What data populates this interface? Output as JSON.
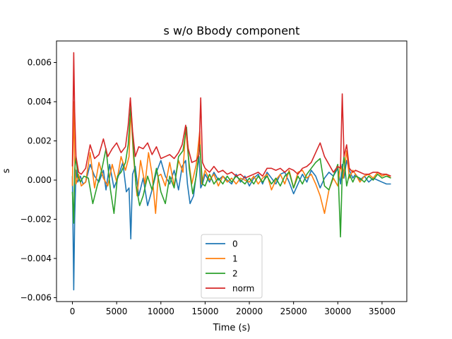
{
  "chart_data": {
    "type": "line",
    "title": "s w/o Bbody component",
    "xlabel": "Time (s)",
    "ylabel": "s",
    "xlim": [
      -1800,
      37800
    ],
    "ylim": [
      -0.0062,
      0.0071
    ],
    "xticks": [
      0,
      5000,
      10000,
      15000,
      20000,
      25000,
      30000,
      35000
    ],
    "xtick_labels": [
      "0",
      "5000",
      "10000",
      "15000",
      "20000",
      "25000",
      "30000",
      "35000"
    ],
    "yticks": [
      -0.006,
      -0.004,
      -0.002,
      0.0,
      0.002,
      0.004,
      0.006
    ],
    "ytick_labels": [
      "−0.006",
      "−0.004",
      "−0.002",
      "0.000",
      "0.002",
      "0.004",
      "0.006"
    ],
    "grid": false,
    "legend_position": "lower-center",
    "series": [
      {
        "name": "0",
        "color": "#1f77b4",
        "x": [
          0,
          150,
          250,
          400,
          600,
          900,
          1200,
          1500,
          2000,
          2500,
          3000,
          3500,
          3800,
          4200,
          4700,
          5200,
          5700,
          6100,
          6400,
          6600,
          6800,
          7100,
          7500,
          8000,
          8500,
          9000,
          9500,
          10000,
          10500,
          11000,
          11500,
          12000,
          12400,
          12800,
          13000,
          13300,
          13700,
          14000,
          14300,
          14500,
          14700,
          15000,
          15500,
          16000,
          16500,
          17000,
          17500,
          18000,
          18500,
          19000,
          19500,
          20000,
          20500,
          21000,
          21500,
          22000,
          22500,
          23000,
          23500,
          24000,
          24500,
          25000,
          25500,
          26000,
          26500,
          27000,
          27500,
          28000,
          28500,
          29000,
          29500,
          30000,
          30300,
          30500,
          30700,
          31000,
          31300,
          31700,
          32000,
          32500,
          33000,
          33500,
          34000,
          34500,
          35000,
          35500,
          36000
        ],
        "y": [
          0.0002,
          -0.0056,
          -0.002,
          0.0005,
          -0.0001,
          0.0002,
          -0.0002,
          -0.0001,
          0.0008,
          0.0002,
          -0.0001,
          0.0005,
          -0.0005,
          0.0008,
          -0.0004,
          0.0002,
          0.0009,
          -0.0006,
          -0.0004,
          -0.003,
          0.0003,
          0.0007,
          -0.0008,
          0.0001,
          -0.0013,
          -0.0005,
          0.0004,
          0.001,
          0.0002,
          -0.0002,
          0.0005,
          -0.0005,
          0.0007,
          0.001,
          -0.0002,
          -0.0012,
          -0.0008,
          0.0003,
          0.0012,
          -0.0004,
          -0.0002,
          0.0003,
          -0.0001,
          0.0004,
          0.0,
          0.0002,
          0.0,
          -0.0002,
          0.0003,
          -0.0001,
          0.0002,
          -0.0003,
          0.0001,
          0.0003,
          -0.0002,
          0.0004,
          0.0001,
          -0.0002,
          0.0003,
          0.0004,
          -0.0001,
          -0.0007,
          -0.0002,
          0.0003,
          -0.0001,
          0.0005,
          0.0002,
          -0.0004,
          0.0001,
          0.0004,
          0.0002,
          0.0006,
          -0.0002,
          0.0008,
          0.0001,
          0.001,
          0.0005,
          0.0001,
          0.0003,
          0.0,
          0.0002,
          -0.0001,
          0.0001,
          0.0,
          -0.0001,
          -0.0002,
          -0.0002
        ]
      },
      {
        "name": "1",
        "color": "#ff7f0e",
        "x": [
          0,
          150,
          250,
          400,
          700,
          1000,
          1500,
          2000,
          2500,
          3000,
          3500,
          4000,
          4500,
          5000,
          5500,
          6000,
          6400,
          6600,
          6900,
          7300,
          7700,
          8200,
          8600,
          9000,
          9400,
          9700,
          10000,
          10500,
          11000,
          11500,
          12000,
          12500,
          12800,
          13100,
          13500,
          14000,
          14400,
          14600,
          15000,
          15500,
          16000,
          16500,
          17000,
          17500,
          18000,
          18500,
          19000,
          19500,
          20000,
          20500,
          21000,
          21500,
          22000,
          22500,
          23000,
          23500,
          24000,
          24500,
          25000,
          25500,
          26000,
          26500,
          27000,
          27500,
          28000,
          28500,
          29000,
          29500,
          30000,
          30300,
          30600,
          31000,
          31300,
          31700,
          32000,
          32500,
          33000,
          33500,
          34000,
          34500,
          35000,
          35500,
          36000
        ],
        "y": [
          -0.0003,
          0.004,
          0.001,
          -0.0002,
          0.0003,
          -0.0003,
          -0.0001,
          0.0014,
          -0.0004,
          0.0009,
          0.0001,
          -0.0003,
          0.0008,
          -0.0001,
          0.0012,
          0.0005,
          0.0012,
          0.0036,
          0.0012,
          -0.0008,
          0.001,
          -0.0002,
          0.0014,
          0.0003,
          -0.0017,
          0.0002,
          0.0003,
          -0.0003,
          0.0009,
          -0.0003,
          0.001,
          0.0004,
          0.0027,
          0.0012,
          -0.0002,
          0.0008,
          0.0025,
          -0.0002,
          0.0005,
          0.0,
          0.0003,
          -0.0003,
          0.0002,
          -0.0001,
          0.0001,
          -0.0002,
          0.0001,
          0.0,
          -0.0001,
          0.0002,
          -0.0002,
          0.0001,
          0.0003,
          -0.0005,
          0.0,
          0.0003,
          -0.0002,
          0.0005,
          -0.0004,
          0.0004,
          0.0005,
          0.0001,
          0.0003,
          -0.0002,
          -0.0008,
          -0.0017,
          -0.0005,
          0.0001,
          -0.0003,
          0.0008,
          0.0001,
          0.0015,
          0.0001,
          0.0005,
          0.0003,
          -0.0001,
          0.0002,
          0.0003,
          0.0001,
          0.0004,
          0.0002,
          0.0003,
          0.0001
        ]
      },
      {
        "name": "2",
        "color": "#2ca02c",
        "x": [
          0,
          150,
          250,
          400,
          600,
          900,
          1300,
          1800,
          2300,
          2800,
          3300,
          3800,
          4300,
          4700,
          5100,
          5500,
          6000,
          6300,
          6600,
          6900,
          7200,
          7600,
          8000,
          8500,
          9000,
          9500,
          10000,
          10500,
          11000,
          11500,
          12000,
          12500,
          12900,
          13200,
          13600,
          14000,
          14400,
          14700,
          15000,
          15500,
          16000,
          16500,
          17000,
          17500,
          18000,
          18500,
          19000,
          19500,
          20000,
          20500,
          21000,
          21500,
          22000,
          22500,
          23000,
          23500,
          24000,
          24500,
          25000,
          25500,
          26000,
          26500,
          27000,
          27500,
          28000,
          28500,
          29000,
          29500,
          30000,
          30300,
          30500,
          30700,
          31000,
          31300,
          31700,
          32000,
          32500,
          33000,
          33500,
          34000,
          34500,
          35000,
          35500,
          36000
        ],
        "y": [
          -0.0006,
          -0.0022,
          0.0005,
          0.0012,
          0.0002,
          -0.0001,
          0.0002,
          0.0001,
          -0.0012,
          -0.0003,
          0.0005,
          0.0016,
          -0.0005,
          -0.0017,
          0.0002,
          0.0004,
          0.0009,
          0.0018,
          0.0038,
          0.0015,
          -0.0003,
          -0.0013,
          -0.0008,
          0.0002,
          -0.0005,
          0.0006,
          -0.0006,
          -0.0012,
          0.0002,
          -0.0004,
          0.0012,
          0.0015,
          0.0027,
          0.0006,
          -0.0007,
          0.0002,
          0.0018,
          -0.0002,
          -0.0003,
          0.0003,
          -0.0002,
          0.0001,
          -0.0002,
          0.0002,
          -0.0001,
          0.0002,
          0.0,
          -0.0002,
          0.0001,
          -0.0002,
          0.0002,
          -0.0001,
          0.0002,
          -0.0002,
          0.0001,
          -0.0003,
          0.0002,
          0.0004,
          -0.0004,
          0.0002,
          -0.0002,
          0.0003,
          0.0006,
          0.0009,
          0.0011,
          -0.0003,
          -0.0005,
          0.0002,
          0.0008,
          -0.0029,
          0.0004,
          0.0012,
          -0.0003,
          0.0003,
          -0.0001,
          0.0002,
          0.0001,
          -0.0001,
          0.0002,
          0.0,
          0.0003,
          0.0001,
          0.0002,
          0.0001
        ]
      },
      {
        "name": "norm",
        "color": "#d62728",
        "x": [
          0,
          150,
          250,
          400,
          700,
          1000,
          1500,
          2000,
          2500,
          3000,
          3500,
          4000,
          4500,
          5000,
          5500,
          6000,
          6300,
          6550,
          6800,
          7100,
          7500,
          8000,
          8500,
          9000,
          9500,
          10000,
          10500,
          11000,
          11500,
          12000,
          12400,
          12800,
          13100,
          13500,
          14000,
          14300,
          14500,
          14700,
          15000,
          15500,
          16000,
          16500,
          17000,
          17500,
          18000,
          18500,
          19000,
          19500,
          20000,
          20500,
          21000,
          21500,
          22000,
          22500,
          23000,
          23500,
          24000,
          24500,
          25000,
          25500,
          26000,
          26500,
          27000,
          27500,
          28000,
          28500,
          29000,
          29500,
          30000,
          30300,
          30500,
          30700,
          31000,
          31300,
          31700,
          32000,
          32500,
          33000,
          33500,
          34000,
          34500,
          35000,
          35500,
          36000
        ],
        "y": [
          0.0007,
          0.0065,
          0.0035,
          0.0012,
          0.0004,
          0.0003,
          0.0006,
          0.0018,
          0.0011,
          0.0013,
          0.0021,
          0.0012,
          0.0016,
          0.0019,
          0.0014,
          0.0017,
          0.0028,
          0.0042,
          0.0025,
          0.0012,
          0.0017,
          0.0016,
          0.0019,
          0.0013,
          0.0017,
          0.0011,
          0.0012,
          0.0013,
          0.0011,
          0.0014,
          0.0018,
          0.0028,
          0.0016,
          0.0009,
          0.001,
          0.0013,
          0.0042,
          0.0009,
          0.0006,
          0.0004,
          0.0007,
          0.0004,
          0.0005,
          0.0003,
          0.0004,
          0.0002,
          0.0003,
          0.0001,
          0.0002,
          0.0003,
          0.0004,
          0.0002,
          0.0006,
          0.0006,
          0.0005,
          0.0006,
          0.0004,
          0.0006,
          0.0005,
          0.0003,
          0.0006,
          0.0007,
          0.0009,
          0.0014,
          0.0019,
          0.0012,
          0.0008,
          0.0004,
          0.0007,
          0.0006,
          0.0044,
          0.0012,
          0.0018,
          0.0006,
          0.0004,
          0.0005,
          0.0004,
          0.0003,
          0.0003,
          0.0004,
          0.0004,
          0.0003,
          0.0003,
          0.0002
        ]
      }
    ]
  }
}
